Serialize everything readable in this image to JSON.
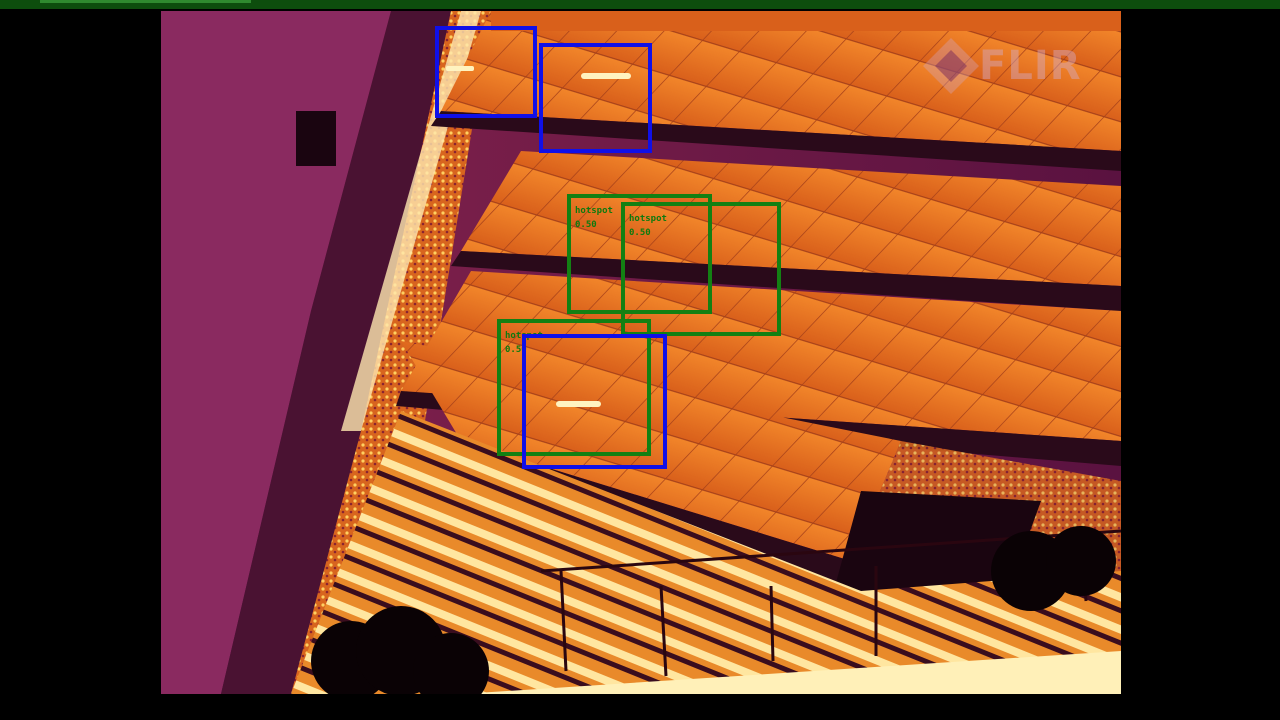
{
  "video": {
    "progress_fraction": 0.17
  },
  "watermark": {
    "brand": "FLIR"
  },
  "detections": [
    {
      "class": "panel"
    },
    {
      "class": "panel"
    },
    {
      "class": "hotspot",
      "label": "hotspot",
      "score": "0.50"
    },
    {
      "class": "hotspot",
      "label": "hotspot",
      "score": "0.50"
    },
    {
      "class": "hotspot",
      "label": "hotspot",
      "score": "0.50"
    },
    {
      "class": "panel"
    }
  ],
  "colors": {
    "hotspot_box": "#138013",
    "panel_box": "#1010e8",
    "top_bar": "#0d4d0d"
  }
}
